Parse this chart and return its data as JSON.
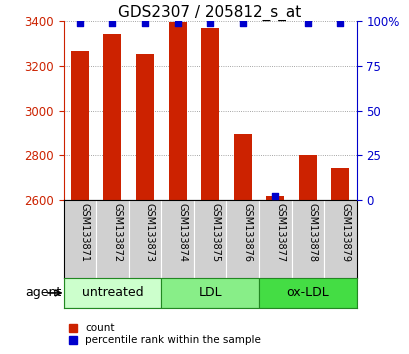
{
  "title": "GDS2307 / 205812_s_at",
  "samples": [
    "GSM133871",
    "GSM133872",
    "GSM133873",
    "GSM133874",
    "GSM133875",
    "GSM133876",
    "GSM133877",
    "GSM133878",
    "GSM133879"
  ],
  "counts": [
    3265,
    3345,
    3252,
    3395,
    3370,
    2895,
    2617,
    2800,
    2745
  ],
  "percentiles": [
    99,
    99,
    99,
    99,
    99,
    99,
    2,
    99,
    99
  ],
  "ylim_left": [
    2600,
    3400
  ],
  "ylim_right": [
    0,
    100
  ],
  "yticks_left": [
    2600,
    2800,
    3000,
    3200,
    3400
  ],
  "yticks_right": [
    0,
    25,
    50,
    75,
    100
  ],
  "groups": [
    {
      "label": "untreated",
      "start": 0,
      "end": 3,
      "color": "#ccffcc"
    },
    {
      "label": "LDL",
      "start": 3,
      "end": 6,
      "color": "#88ee88"
    },
    {
      "label": "ox-LDL",
      "start": 6,
      "end": 9,
      "color": "#44dd44"
    }
  ],
  "bar_color": "#cc2200",
  "blue_color": "#0000cc",
  "grid_color": "#888888",
  "title_fontsize": 11,
  "tick_fontsize": 8.5,
  "label_fontsize": 9,
  "sample_fontsize": 7,
  "bar_width": 0.55,
  "agent_label": "agent",
  "legend_count_label": "count",
  "legend_pct_label": "percentile rank within the sample",
  "group_border_color": "#228822",
  "sample_cell_color": "#d0d0d0"
}
